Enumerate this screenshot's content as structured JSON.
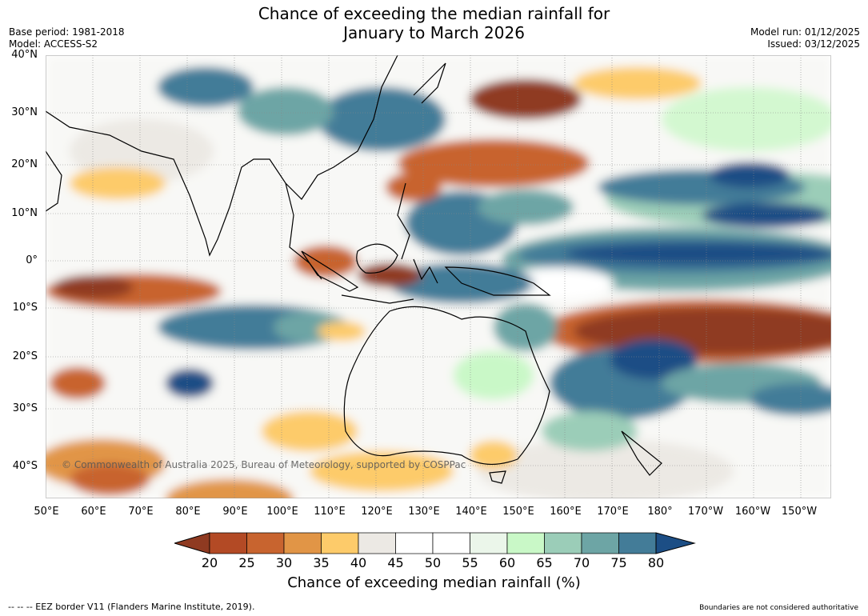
{
  "title": {
    "line1": "Chance of exceeding the median rainfall for",
    "line2": "January to March 2026"
  },
  "meta_left": {
    "base_period": "Base period: 1981-2018",
    "model": "Model: ACCESS-S2"
  },
  "meta_right": {
    "model_run": "Model run: 01/12/2025",
    "issued": "Issued: 03/12/2025"
  },
  "lat_labels": [
    "40°N",
    "30°N",
    "20°N",
    "10°N",
    "0°",
    "10°S",
    "20°S",
    "30°S",
    "40°S"
  ],
  "lon_labels": [
    "50°E",
    "60°E",
    "70°E",
    "80°E",
    "90°E",
    "100°E",
    "110°E",
    "120°E",
    "130°E",
    "140°E",
    "150°E",
    "160°E",
    "170°E",
    "180°",
    "170°W",
    "160°W",
    "150°W"
  ],
  "copyright": "© Commonwealth of Australia 2025, Bureau of Meteorology, supported by COSPPac",
  "colorbar": {
    "ticks": [
      "20",
      "25",
      "30",
      "35",
      "40",
      "45",
      "50",
      "55",
      "60",
      "65",
      "70",
      "75",
      "80"
    ],
    "colors": [
      "#8f3a21",
      "#b34a25",
      "#c8642f",
      "#e19546",
      "#fdcb6a",
      "#ece9e4",
      "#ffffff",
      "#ffffff",
      "#ebf6ea",
      "#c9f8c7",
      "#9bcdb8",
      "#6da5a5",
      "#437c98",
      "#1c4e85"
    ],
    "label": "Chance of exceeding median rainfall (%)"
  },
  "footer": {
    "eez": "--  --  -- EEZ border V11 (Flanders Marine Institute, 2019).",
    "boundaries": "Boundaries are not considered authoritative"
  }
}
